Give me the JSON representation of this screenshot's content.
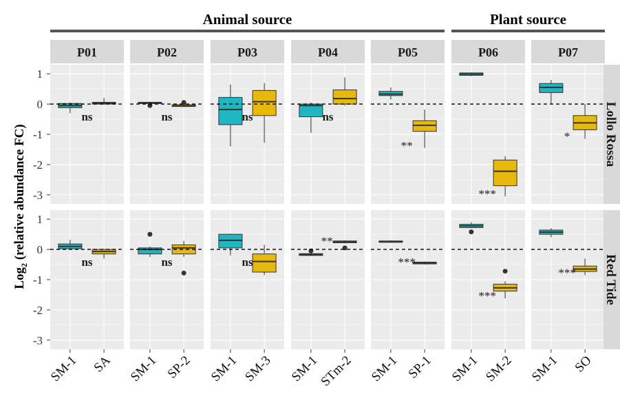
{
  "chart_data": {
    "type": "boxplot",
    "ylabel": "Log2 (relative abundance FC)",
    "ylabel_main": "Log",
    "ylabel_sub": "2",
    "ylabel_rest": " (relative abundance FC)",
    "ylim": [
      -3.3,
      1.3
    ],
    "yticks": [
      1,
      0,
      -1,
      -2,
      -3
    ],
    "ytick_labels": [
      "1",
      "0",
      "-1",
      "-2",
      "-3"
    ],
    "reference_line": 0,
    "colors": {
      "SM-1": "#1fb5c1",
      "other": "#e8b80a",
      "panel_bg": "#ebebeb",
      "strip_bg": "#d9d9d9"
    },
    "source_groups": [
      {
        "label": "Animal source",
        "panels": [
          "P01",
          "P02",
          "P03",
          "P04",
          "P05"
        ]
      },
      {
        "label": "Plant source",
        "panels": [
          "P06",
          "P07"
        ]
      }
    ],
    "rows": [
      "Lollo Rossa",
      "Red Tide"
    ],
    "panels": [
      {
        "id": "P01",
        "categories": [
          "SM-1",
          "SA"
        ],
        "boxes": {
          "Lollo Rossa": [
            {
              "min": -0.3,
              "q1": -0.12,
              "median": -0.05,
              "q3": 0.02,
              "max": 0.05,
              "outliers": []
            },
            {
              "min": -0.02,
              "q1": 0.0,
              "median": 0.03,
              "q3": 0.06,
              "max": 0.2,
              "outliers": []
            }
          ],
          "Red Tide": [
            {
              "min": 0.0,
              "q1": 0.02,
              "median": 0.1,
              "q3": 0.18,
              "max": 0.32,
              "outliers": []
            },
            {
              "min": -0.3,
              "q1": -0.15,
              "median": -0.07,
              "q3": 0.0,
              "max": 0.02,
              "outliers": []
            }
          ]
        },
        "sig": {
          "Lollo Rossa": "ns",
          "Red Tide": "ns"
        }
      },
      {
        "id": "P02",
        "categories": [
          "SM-1",
          "SP-2"
        ],
        "boxes": {
          "Lollo Rossa": [
            {
              "min": 0.0,
              "q1": 0.02,
              "median": 0.04,
              "q3": 0.06,
              "max": 0.08,
              "outliers": [
                -0.05
              ]
            },
            {
              "min": -0.1,
              "q1": -0.08,
              "median": -0.06,
              "q3": -0.02,
              "max": 0.0,
              "outliers": [
                0.05
              ]
            }
          ],
          "Red Tide": [
            {
              "min": -0.25,
              "q1": -0.15,
              "median": 0.0,
              "q3": 0.05,
              "max": 0.1,
              "outliers": [
                0.5
              ]
            },
            {
              "min": -0.25,
              "q1": -0.15,
              "median": 0.05,
              "q3": 0.15,
              "max": 0.28,
              "outliers": [
                -0.78
              ]
            }
          ]
        },
        "sig": {
          "Lollo Rossa": "ns",
          "Red Tide": "ns"
        }
      },
      {
        "id": "P03",
        "categories": [
          "SM-1",
          "SM-3"
        ],
        "boxes": {
          "Lollo Rossa": [
            {
              "min": -1.4,
              "q1": -0.68,
              "median": -0.18,
              "q3": 0.22,
              "max": 0.65,
              "outliers": []
            },
            {
              "min": -1.28,
              "q1": -0.38,
              "median": 0.08,
              "q3": 0.45,
              "max": 0.7,
              "outliers": []
            }
          ],
          "Red Tide": [
            {
              "min": -0.2,
              "q1": 0.05,
              "median": 0.3,
              "q3": 0.5,
              "max": 0.52,
              "outliers": []
            },
            {
              "min": -0.85,
              "q1": -0.75,
              "median": -0.4,
              "q3": -0.15,
              "max": 0.15,
              "outliers": []
            }
          ]
        },
        "sig": {
          "Lollo Rossa": "ns",
          "Red Tide": "ns"
        }
      },
      {
        "id": "P04",
        "categories": [
          "SM-1",
          "STm-2"
        ],
        "boxes": {
          "Lollo Rossa": [
            {
              "min": -0.95,
              "q1": -0.42,
              "median": -0.05,
              "q3": 0.0,
              "max": 0.05,
              "outliers": []
            },
            {
              "min": -0.05,
              "q1": 0.0,
              "median": 0.18,
              "q3": 0.47,
              "max": 0.88,
              "outliers": []
            }
          ],
          "Red Tide": [
            {
              "min": -0.22,
              "q1": -0.2,
              "median": -0.17,
              "q3": -0.14,
              "max": -0.12,
              "outliers": [
                -0.05
              ]
            },
            {
              "min": 0.2,
              "q1": 0.22,
              "median": 0.25,
              "q3": 0.28,
              "max": 0.3,
              "outliers": [
                0.05
              ]
            }
          ]
        },
        "sig": {
          "Lollo Rossa": "ns",
          "Red Tide": "**"
        }
      },
      {
        "id": "P05",
        "categories": [
          "SM-1",
          "SP-1"
        ],
        "boxes": {
          "Lollo Rossa": [
            {
              "min": 0.15,
              "q1": 0.28,
              "median": 0.33,
              "q3": 0.42,
              "max": 0.55,
              "outliers": []
            },
            {
              "min": -1.45,
              "q1": -0.9,
              "median": -0.7,
              "q3": -0.55,
              "max": -0.18,
              "outliers": []
            }
          ],
          "Red Tide": [
            {
              "min": 0.22,
              "q1": 0.24,
              "median": 0.26,
              "q3": 0.28,
              "max": 0.3,
              "outliers": []
            },
            {
              "min": -0.5,
              "q1": -0.48,
              "median": -0.45,
              "q3": -0.42,
              "max": -0.4,
              "outliers": []
            }
          ]
        },
        "sig": {
          "Lollo Rossa": "**",
          "Red Tide": "***"
        }
      },
      {
        "id": "P06",
        "categories": [
          "SM-1",
          "SM-2"
        ],
        "boxes": {
          "Lollo Rossa": [
            {
              "min": 0.92,
              "q1": 0.95,
              "median": 0.99,
              "q3": 1.03,
              "max": 1.05,
              "outliers": []
            },
            {
              "min": -3.05,
              "q1": -2.7,
              "median": -2.22,
              "q3": -1.85,
              "max": -1.72,
              "outliers": []
            }
          ],
          "Red Tide": [
            {
              "min": 0.7,
              "q1": 0.72,
              "median": 0.78,
              "q3": 0.83,
              "max": 0.9,
              "outliers": [
                0.58
              ]
            },
            {
              "min": -1.62,
              "q1": -1.38,
              "median": -1.27,
              "q3": -1.15,
              "max": -1.05,
              "outliers": [
                -0.72
              ]
            }
          ]
        },
        "sig": {
          "Lollo Rossa": "***",
          "Red Tide": "***"
        }
      },
      {
        "id": "P07",
        "categories": [
          "SM-1",
          "SO"
        ],
        "boxes": {
          "Lollo Rossa": [
            {
              "min": 0.0,
              "q1": 0.38,
              "median": 0.55,
              "q3": 0.68,
              "max": 0.8,
              "outliers": []
            },
            {
              "min": -1.15,
              "q1": -0.85,
              "median": -0.62,
              "q3": -0.38,
              "max": 0.0,
              "outliers": []
            }
          ],
          "Red Tide": [
            {
              "min": 0.4,
              "q1": 0.5,
              "median": 0.57,
              "q3": 0.64,
              "max": 0.7,
              "outliers": []
            },
            {
              "min": -0.85,
              "q1": -0.73,
              "median": -0.65,
              "q3": -0.55,
              "max": -0.3,
              "outliers": []
            }
          ]
        },
        "sig": {
          "Lollo Rossa": "*",
          "Red Tide": "***"
        }
      }
    ]
  }
}
